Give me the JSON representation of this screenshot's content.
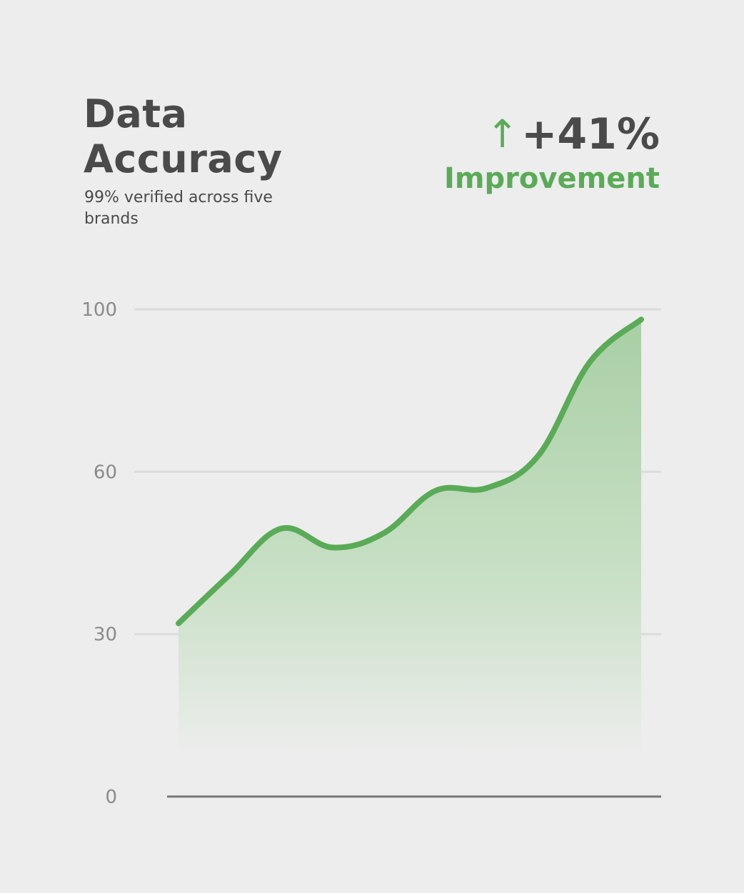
{
  "header": {
    "title_line1": "Data",
    "title_line2": "Accuracy",
    "subtitle": "99% verified across five brands"
  },
  "kpi": {
    "icon": "arrow-up-icon",
    "arrow": "↑",
    "value": "+41%",
    "label": "Improvement"
  },
  "colors": {
    "accent": "#5aab57",
    "text": "#4a4a4a",
    "background": "#ededed",
    "grid": "#dcdcdc",
    "axis": "#777777"
  },
  "chart_data": {
    "type": "area",
    "title": "",
    "xlabel": "",
    "ylabel": "",
    "y_ticks": [
      0,
      30,
      60,
      100
    ],
    "y_tick_labels": [
      "0",
      "30",
      "60",
      "100"
    ],
    "ylim": [
      0,
      100
    ],
    "grid": true,
    "values": [
      32,
      41,
      49.5,
      46,
      48.7,
      56.5,
      57,
      64,
      87,
      97.5
    ]
  }
}
